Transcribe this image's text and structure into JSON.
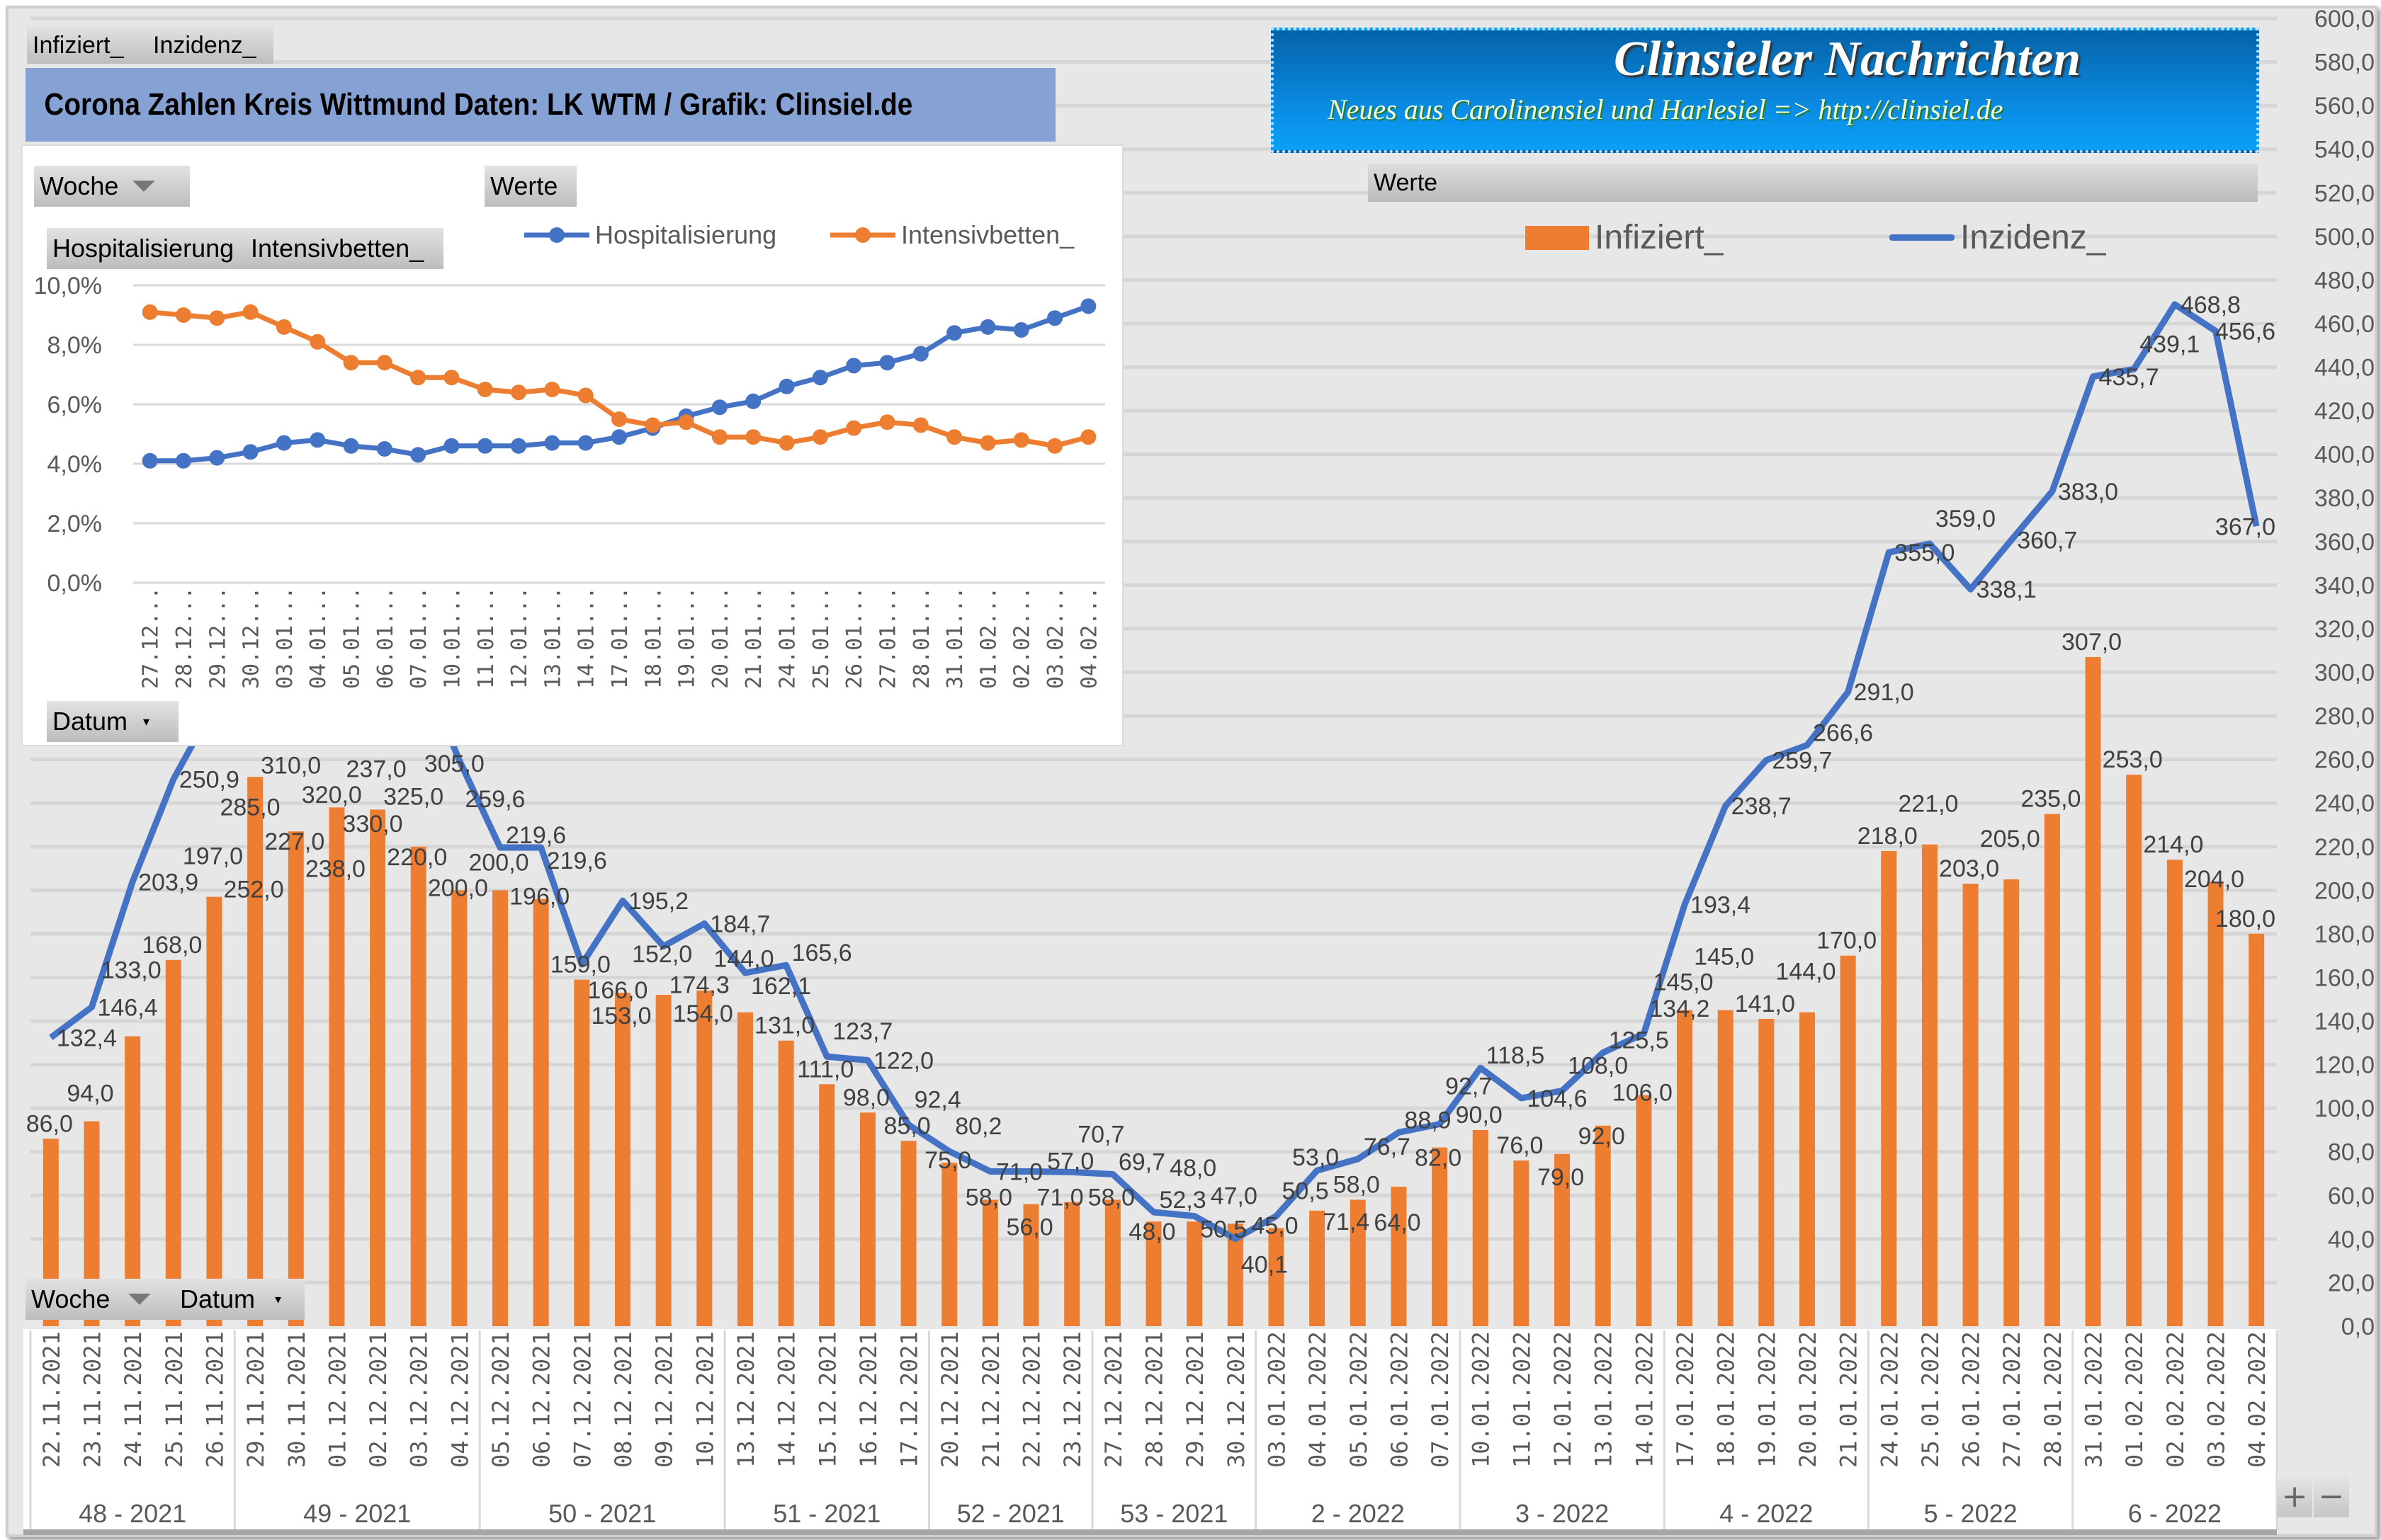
{
  "field_tabs": [
    "Infiziert_",
    "Inzidenz_"
  ],
  "title": "Corona Zahlen Kreis Wittmund  Daten: LK WTM / Grafik: Clinsiel.de",
  "banner": {
    "title": "Clinsieler Nachrichten",
    "subtitle": "Neues aus Carolinensiel und Harlesiel    => http://clinsiel.de"
  },
  "werte_label": "Werte",
  "filter_buttons": {
    "woche": "Woche",
    "datum": "Datum"
  },
  "zoom_buttons": {
    "plus": "+",
    "minus": "−"
  },
  "colors": {
    "infiziert": "#ed7d31",
    "inzidenz": "#4472c4",
    "hospitalisierung": "#4472c4",
    "intensivbetten": "#ed7d31",
    "title_bar": "#86a2d4"
  },
  "chart_data": [
    {
      "type": "bar+line",
      "title": "",
      "legend": [
        "Infiziert_",
        "Inzidenz_"
      ],
      "legend_position": "top",
      "grid": true,
      "ylim": [
        0,
        600
      ],
      "y_ticks": [
        "0,0",
        "20,0",
        "40,0",
        "60,0",
        "80,0",
        "100,0",
        "120,0",
        "140,0",
        "160,0",
        "180,0",
        "200,0",
        "220,0",
        "240,0",
        "260,0",
        "280,0",
        "300,0",
        "320,0",
        "340,0",
        "360,0",
        "380,0",
        "400,0",
        "420,0",
        "440,0",
        "460,0",
        "480,0",
        "500,0",
        "520,0",
        "540,0",
        "560,0",
        "580,0",
        "600,0"
      ],
      "weeks": [
        {
          "label": "48 - 2021",
          "count": 5
        },
        {
          "label": "49 - 2021",
          "count": 6
        },
        {
          "label": "50 - 2021",
          "count": 6
        },
        {
          "label": "51 - 2021",
          "count": 5
        },
        {
          "label": "52 - 2021",
          "count": 4
        },
        {
          "label": "53 - 2021",
          "count": 4
        },
        {
          "label": "2 - 2022",
          "count": 5
        },
        {
          "label": "3 - 2022",
          "count": 5
        },
        {
          "label": "4 - 2022",
          "count": 5
        },
        {
          "label": "5 - 2022",
          "count": 5
        },
        {
          "label": "6 - 2022",
          "count": 5
        }
      ],
      "categories": [
        "22.11.2021",
        "23.11.2021",
        "24.11.2021",
        "25.11.2021",
        "26.11.2021",
        "29.11.2021",
        "30.11.2021",
        "01.12.2021",
        "02.12.2021",
        "03.12.2021",
        "04.12.2021",
        "05.12.2021",
        "06.12.2021",
        "07.12.2021",
        "08.12.2021",
        "09.12.2021",
        "10.12.2021",
        "13.12.2021",
        "14.12.2021",
        "15.12.2021",
        "16.12.2021",
        "17.12.2021",
        "20.12.2021",
        "21.12.2021",
        "22.12.2021",
        "23.12.2021",
        "27.12.2021",
        "28.12.2021",
        "29.12.2021",
        "30.12.2021",
        "03.01.2022",
        "04.01.2022",
        "05.01.2022",
        "06.01.2022",
        "07.01.2022",
        "10.01.2022",
        "11.01.2022",
        "12.01.2022",
        "13.01.2022",
        "14.01.2022",
        "17.01.2022",
        "18.01.2022",
        "19.01.2022",
        "20.01.2022",
        "21.01.2022",
        "24.01.2022",
        "25.01.2022",
        "26.01.2022",
        "27.01.2022",
        "28.01.2022",
        "31.01.2022",
        "01.02.2022",
        "02.02.2022",
        "03.02.2022",
        "04.02.2022"
      ],
      "series": [
        {
          "name": "Infiziert_",
          "type": "bar",
          "values": [
            86.0,
            94.0,
            133.0,
            168.0,
            197.0,
            252.0,
            227.0,
            238.0,
            237.0,
            220.0,
            200.0,
            200.0,
            196.0,
            159.0,
            153.0,
            152.0,
            154.0,
            144.0,
            131.0,
            111.0,
            98.0,
            85.0,
            75.0,
            58.0,
            56.0,
            57.0,
            58.0,
            48.0,
            48.0,
            47.0,
            45.0,
            53.0,
            58.0,
            64.0,
            82.0,
            90.0,
            76.0,
            79.0,
            92.0,
            106.0,
            145.0,
            145.0,
            141.0,
            144.0,
            170.0,
            218.0,
            221.0,
            203.0,
            205.0,
            235.0,
            307.0,
            253.0,
            214.0,
            204.0,
            180.0
          ]
        },
        {
          "name": "Inzidenz_",
          "type": "line",
          "values": [
            132.4,
            146.4,
            203.9,
            250.9,
            285.0,
            310.0,
            320.0,
            330.0,
            325.0,
            305.0,
            259.6,
            219.6,
            219.6,
            166.0,
            195.2,
            174.3,
            184.7,
            162.1,
            165.6,
            123.7,
            122.0,
            92.4,
            80.2,
            71.0,
            71.0,
            70.7,
            69.7,
            52.3,
            50.5,
            40.1,
            50.5,
            71.4,
            76.7,
            88.9,
            92.7,
            118.5,
            104.6,
            108.0,
            125.5,
            134.2,
            193.4,
            238.7,
            259.7,
            266.6,
            291.0,
            355.0,
            359.0,
            338.1,
            360.7,
            383.0,
            435.7,
            439.1,
            468.8,
            456.6,
            367.0
          ]
        }
      ]
    },
    {
      "type": "line",
      "title": "",
      "legend": [
        "Hospitalisierung",
        "Intensivbetten_"
      ],
      "legend_position": "top",
      "grid": true,
      "ylim": [
        0,
        10
      ],
      "y_ticks": [
        "0,0%",
        "2,0%",
        "4,0%",
        "6,0%",
        "8,0%",
        "10,0%"
      ],
      "categories": [
        "27.12...",
        "28.12...",
        "29.12...",
        "30.12...",
        "03.01...",
        "04.01...",
        "05.01...",
        "06.01...",
        "07.01...",
        "10.01...",
        "11.01...",
        "12.01...",
        "13.01...",
        "14.01...",
        "17.01...",
        "18.01...",
        "19.01...",
        "20.01...",
        "21.01...",
        "24.01...",
        "25.01...",
        "26.01...",
        "27.01...",
        "28.01...",
        "31.01...",
        "01.02...",
        "02.02...",
        "03.02...",
        "04.02..."
      ],
      "series": [
        {
          "name": "Hospitalisierung",
          "values": [
            4.1,
            4.1,
            4.2,
            4.4,
            4.7,
            4.8,
            4.6,
            4.5,
            4.3,
            4.6,
            4.6,
            4.6,
            4.7,
            4.7,
            4.9,
            5.2,
            5.6,
            5.9,
            6.1,
            6.6,
            6.9,
            7.3,
            7.4,
            7.7,
            8.4,
            8.6,
            8.5,
            8.9,
            9.3
          ]
        },
        {
          "name": "Intensivbetten_",
          "values": [
            9.1,
            9.0,
            8.9,
            9.1,
            8.6,
            8.1,
            7.4,
            7.4,
            6.9,
            6.9,
            6.5,
            6.4,
            6.5,
            6.3,
            5.5,
            5.3,
            5.4,
            4.9,
            4.9,
            4.7,
            4.9,
            5.2,
            5.4,
            5.3,
            4.9,
            4.7,
            4.8,
            4.6,
            4.9
          ]
        }
      ]
    }
  ]
}
